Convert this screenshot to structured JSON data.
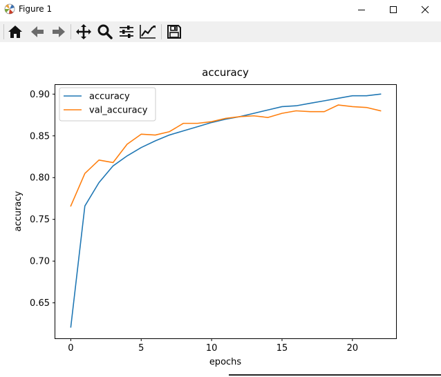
{
  "window": {
    "title": "Figure 1",
    "icon": "matplotlib-icon",
    "controls": [
      "minimize-icon",
      "maximize-icon",
      "close-icon"
    ]
  },
  "toolbar": {
    "tools": [
      "home-icon",
      "back-icon",
      "forward-icon",
      "pan-icon",
      "zoom-icon",
      "configure-subplots-icon",
      "edit-axis-icon",
      "save-icon"
    ]
  },
  "colors": {
    "accuracy": "#1f77b4",
    "val_accuracy": "#ff7f0e"
  },
  "chart_data": {
    "type": "line",
    "title": "accuracy",
    "xlabel": "epochs",
    "ylabel": "accuracy",
    "xlim": [
      -1.1,
      23.1
    ],
    "ylim": [
      0.6075,
      0.911
    ],
    "xticks": [
      0,
      5,
      10,
      15,
      20
    ],
    "yticks": [
      0.65,
      0.7,
      0.75,
      0.8,
      0.85,
      0.9
    ],
    "ytick_labels": [
      "0.65",
      "0.70",
      "0.75",
      "0.80",
      "0.85",
      "0.90"
    ],
    "grid": false,
    "legend": "upper-left",
    "x": [
      0,
      1,
      2,
      3,
      4,
      5,
      6,
      7,
      8,
      9,
      10,
      11,
      12,
      13,
      14,
      15,
      16,
      17,
      18,
      19,
      20,
      21,
      22
    ],
    "series": [
      {
        "name": "accuracy",
        "values": [
          0.621,
          0.766,
          0.794,
          0.814,
          0.826,
          0.836,
          0.844,
          0.851,
          0.856,
          0.861,
          0.866,
          0.87,
          0.873,
          0.877,
          0.881,
          0.885,
          0.886,
          0.889,
          0.892,
          0.895,
          0.898,
          0.898,
          0.9
        ]
      },
      {
        "name": "val_accuracy",
        "values": [
          0.766,
          0.805,
          0.821,
          0.818,
          0.84,
          0.852,
          0.851,
          0.855,
          0.865,
          0.865,
          0.867,
          0.871,
          0.873,
          0.874,
          0.872,
          0.877,
          0.88,
          0.879,
          0.879,
          0.887,
          0.885,
          0.884,
          0.88
        ]
      }
    ]
  }
}
